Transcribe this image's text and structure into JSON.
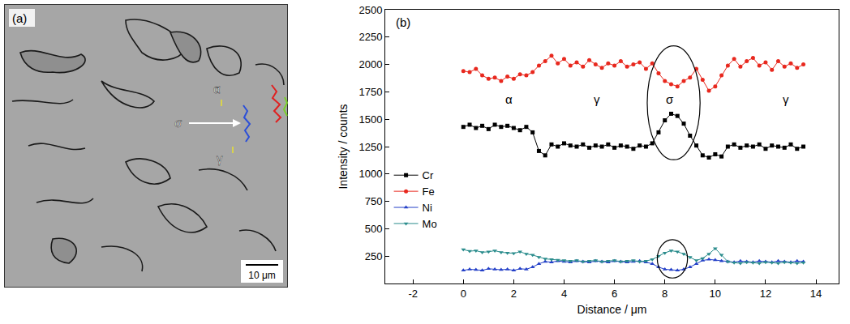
{
  "image_panel": {
    "label": "(a)",
    "phase_labels": {
      "alpha": "α",
      "sigma": "σ",
      "gamma": "γ"
    },
    "scale_bar": "10 μm"
  },
  "chart_data": {
    "type": "line",
    "panel_label": "(b)",
    "x_label": "Distance / μm",
    "y_label": "Intensity / counts",
    "x": [
      0,
      0.25,
      0.5,
      0.75,
      1,
      1.25,
      1.5,
      1.75,
      2,
      2.25,
      2.5,
      2.75,
      3,
      3.25,
      3.5,
      3.75,
      4,
      4.25,
      4.5,
      4.75,
      5,
      5.25,
      5.5,
      5.75,
      6,
      6.25,
      6.5,
      6.75,
      7,
      7.25,
      7.5,
      7.75,
      8,
      8.25,
      8.5,
      8.75,
      9,
      9.25,
      9.5,
      9.75,
      10,
      10.25,
      10.5,
      10.75,
      11,
      11.25,
      11.5,
      11.75,
      12,
      12.25,
      12.5,
      12.75,
      13,
      13.25,
      13.5
    ],
    "series": [
      {
        "name": "Cr",
        "color": "#000000",
        "marker": "square",
        "line_style": "solid",
        "values": [
          1430,
          1450,
          1420,
          1440,
          1410,
          1450,
          1430,
          1440,
          1420,
          1400,
          1430,
          1380,
          1210,
          1170,
          1270,
          1250,
          1280,
          1260,
          1250,
          1270,
          1240,
          1260,
          1250,
          1270,
          1240,
          1260,
          1250,
          1230,
          1260,
          1250,
          1280,
          1380,
          1490,
          1550,
          1530,
          1460,
          1350,
          1260,
          1170,
          1150,
          1180,
          1160,
          1250,
          1270,
          1240,
          1260,
          1250,
          1270,
          1230,
          1260,
          1250,
          1240,
          1270,
          1230,
          1250
        ]
      },
      {
        "name": "Fe",
        "color": "#e8281e",
        "marker": "circle",
        "line_style": "solid",
        "values": [
          1940,
          1930,
          1960,
          1900,
          1870,
          1880,
          1850,
          1890,
          1870,
          1910,
          1900,
          1930,
          1990,
          2030,
          2080,
          2010,
          2050,
          1990,
          2020,
          1980,
          2040,
          2000,
          1970,
          2010,
          1990,
          2030,
          1980,
          2000,
          2020,
          1960,
          2010,
          1920,
          1850,
          1820,
          1800,
          1850,
          1880,
          1960,
          1860,
          1760,
          1800,
          1900,
          1990,
          2050,
          1980,
          2030,
          2060,
          1990,
          2020,
          1950,
          2030,
          1980,
          2010,
          1970,
          2000
        ]
      },
      {
        "name": "Ni",
        "color": "#2440c8",
        "marker": "triangle-up",
        "line_style": "solid",
        "values": [
          120,
          130,
          125,
          120,
          135,
          130,
          125,
          130,
          120,
          135,
          130,
          150,
          180,
          200,
          195,
          205,
          200,
          195,
          205,
          200,
          195,
          205,
          200,
          195,
          205,
          200,
          195,
          200,
          205,
          195,
          180,
          150,
          130,
          125,
          120,
          130,
          150,
          180,
          210,
          220,
          215,
          205,
          200,
          195,
          205,
          200,
          195,
          205,
          200,
          195,
          205,
          200,
          195,
          205,
          200
        ]
      },
      {
        "name": "Mo",
        "color": "#2a8c8c",
        "marker": "triangle-down",
        "line_style": "solid",
        "values": [
          310,
          295,
          300,
          285,
          290,
          300,
          285,
          280,
          275,
          290,
          270,
          260,
          240,
          225,
          220,
          215,
          210,
          205,
          210,
          200,
          205,
          210,
          200,
          205,
          210,
          200,
          205,
          210,
          200,
          205,
          220,
          250,
          280,
          300,
          290,
          270,
          240,
          210,
          230,
          270,
          320,
          260,
          200,
          190,
          185,
          195,
          190,
          185,
          195,
          190,
          185,
          195,
          190,
          185,
          190
        ]
      }
    ],
    "xlim": [
      -3.1,
      14.9
    ],
    "xticks": [
      -2,
      0,
      2,
      4,
      6,
      8,
      10,
      12,
      14
    ],
    "ylim": [
      0,
      2500
    ],
    "yticks": [
      250,
      500,
      750,
      1000,
      1250,
      1500,
      1750,
      2000,
      2250,
      2500
    ],
    "grid": false,
    "legend": "left",
    "annotations": [
      {
        "text": "α",
        "x": 1.8,
        "y": 1680
      },
      {
        "text": "γ",
        "x": 5.3,
        "y": 1680
      },
      {
        "text": "σ",
        "x": 8.2,
        "y": 1680
      },
      {
        "text": "γ",
        "x": 12.8,
        "y": 1680
      }
    ],
    "ellipses": [
      {
        "x0": 7.3,
        "x1": 9.4,
        "y0": 1130,
        "y1": 2170
      },
      {
        "x0": 7.7,
        "x1": 8.9,
        "y0": 50,
        "y1": 400
      }
    ]
  }
}
